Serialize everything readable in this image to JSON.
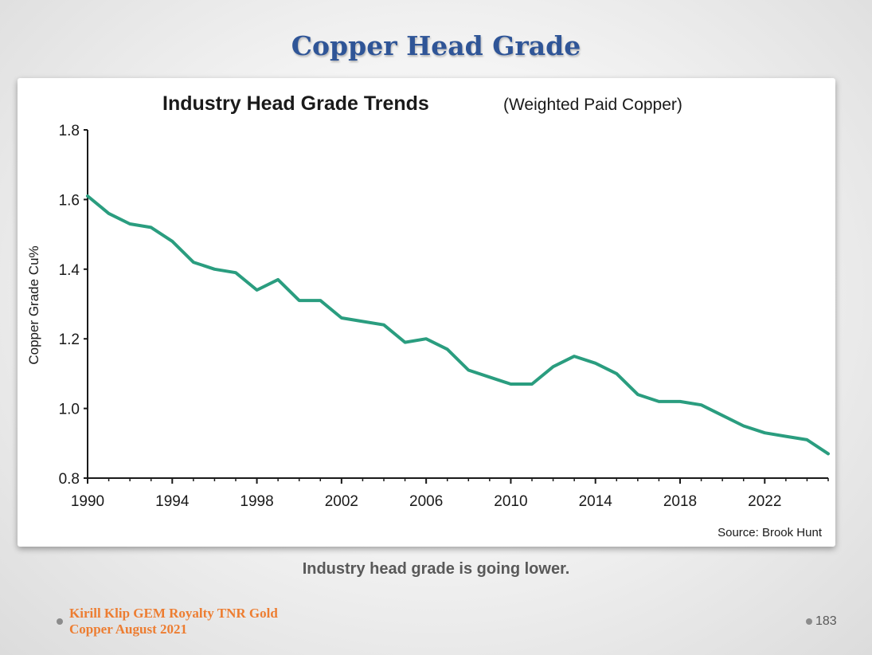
{
  "slide": {
    "title": "Copper Head Grade",
    "caption": "Industry head grade is going lower.",
    "footer_line1": "Kirill Klip GEM Royalty TNR Gold",
    "footer_line2": "Copper August 2021",
    "page_number": "183"
  },
  "chart_data": {
    "type": "line",
    "title": "Industry Head Grade Trends",
    "subtitle": "(Weighted Paid Copper)",
    "xlabel": "",
    "ylabel": "Copper Grade Cu%",
    "source": "Source: Brook Hunt",
    "xlim": [
      1990,
      2025
    ],
    "ylim": [
      0.8,
      1.8
    ],
    "x_ticks": [
      "1990",
      "1994",
      "1998",
      "2002",
      "2006",
      "2010",
      "2014",
      "2018",
      "2022"
    ],
    "y_ticks": [
      "1.8",
      "1.6",
      "1.4",
      "1.2",
      "1.0",
      "0.8"
    ],
    "grid": false,
    "color": "#2a9d7f",
    "series": [
      {
        "x": [
          1990,
          1991,
          1992,
          1993,
          1994,
          1995,
          1996,
          1997,
          1998,
          1999,
          2000,
          2001,
          2002,
          2003,
          2004,
          2005,
          2006,
          2007,
          2008,
          2009,
          2010,
          2011,
          2012,
          2013,
          2014,
          2015,
          2016,
          2017,
          2018,
          2019,
          2020,
          2021,
          2022,
          2023,
          2024,
          2025
        ],
        "values": [
          1.61,
          1.56,
          1.53,
          1.52,
          1.48,
          1.42,
          1.4,
          1.39,
          1.34,
          1.37,
          1.31,
          1.31,
          1.26,
          1.25,
          1.24,
          1.19,
          1.2,
          1.17,
          1.11,
          1.09,
          1.07,
          1.07,
          1.12,
          1.15,
          1.13,
          1.1,
          1.04,
          1.02,
          1.02,
          1.01,
          0.98,
          0.95,
          0.93,
          0.92,
          0.91,
          0.87
        ]
      }
    ]
  }
}
